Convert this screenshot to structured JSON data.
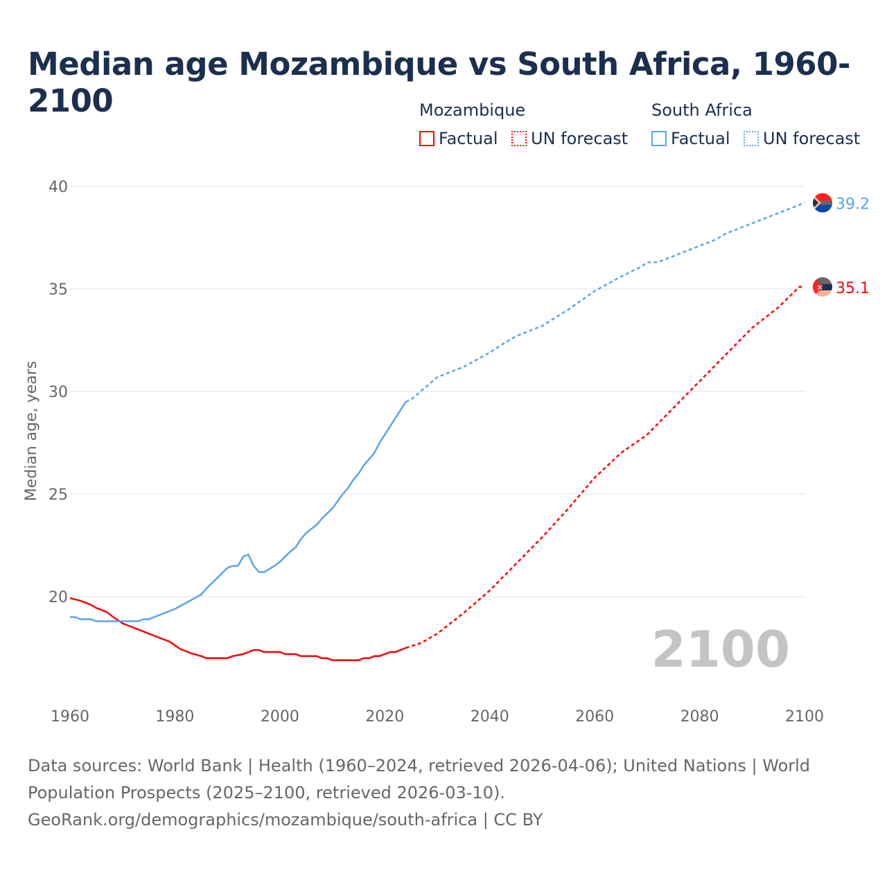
{
  "chart_data": {
    "type": "line",
    "title": "Median age Mozambique vs South Africa, 1960-2100",
    "xlabel": "",
    "ylabel": "Median age, years",
    "xlim": [
      1960,
      2100
    ],
    "ylim": [
      15.5,
      41
    ],
    "x_ticks": [
      "1960",
      "1980",
      "2000",
      "2020",
      "2040",
      "2060",
      "2080",
      "2100"
    ],
    "y_ticks": [
      "20",
      "25",
      "30",
      "35",
      "40"
    ],
    "grid": true,
    "watermark_year": "2100",
    "legend": {
      "groups": [
        {
          "name": "Mozambique",
          "items": [
            "Factual",
            "UN forecast"
          ]
        },
        {
          "name": "South Africa",
          "items": [
            "Factual",
            "UN forecast"
          ]
        }
      ],
      "placement": "top-right"
    },
    "series": [
      {
        "name": "Mozambique",
        "color": "#ff0000",
        "end_label": "35.1",
        "factual_until": 2024,
        "points": [
          [
            1960,
            19.93
          ],
          [
            1962,
            19.8
          ],
          [
            1964,
            19.6
          ],
          [
            1965,
            19.45
          ],
          [
            1967,
            19.25
          ],
          [
            1968,
            19.05
          ],
          [
            1970,
            18.7
          ],
          [
            1975,
            18.2
          ],
          [
            1979,
            17.8
          ],
          [
            1981,
            17.45
          ],
          [
            1983,
            17.25
          ],
          [
            1985,
            17.1
          ],
          [
            1986,
            17.0
          ],
          [
            1990,
            17.0
          ],
          [
            1991,
            17.1
          ],
          [
            1993,
            17.2
          ],
          [
            1995,
            17.4
          ],
          [
            1996,
            17.4
          ],
          [
            1997,
            17.3
          ],
          [
            2000,
            17.3
          ],
          [
            2001,
            17.2
          ],
          [
            2003,
            17.2
          ],
          [
            2004,
            17.1
          ],
          [
            2007,
            17.1
          ],
          [
            2008,
            17.0
          ],
          [
            2009,
            17.0
          ],
          [
            2010,
            16.9
          ],
          [
            2015,
            16.9
          ],
          [
            2016,
            17.0
          ],
          [
            2017,
            17.0
          ],
          [
            2018,
            17.1
          ],
          [
            2019,
            17.1
          ],
          [
            2021,
            17.3
          ],
          [
            2022,
            17.3
          ],
          [
            2024,
            17.5
          ],
          [
            2027,
            17.75
          ],
          [
            2030,
            18.2
          ],
          [
            2035,
            19.2
          ],
          [
            2040,
            20.3
          ],
          [
            2045,
            21.6
          ],
          [
            2050,
            22.9
          ],
          [
            2055,
            24.3
          ],
          [
            2060,
            25.8
          ],
          [
            2065,
            27.0
          ],
          [
            2070,
            27.9
          ],
          [
            2075,
            29.2
          ],
          [
            2080,
            30.5
          ],
          [
            2085,
            31.8
          ],
          [
            2090,
            33.1
          ],
          [
            2095,
            34.1
          ],
          [
            2099,
            35.1
          ],
          [
            2100,
            35.1
          ]
        ]
      },
      {
        "name": "South Africa",
        "color": "#5ba3ea",
        "end_label": "39.2",
        "factual_until": 2024,
        "points": [
          [
            1960,
            19.0
          ],
          [
            1961,
            19.0
          ],
          [
            1962,
            18.9
          ],
          [
            1964,
            18.9
          ],
          [
            1965,
            18.8
          ],
          [
            1973,
            18.8
          ],
          [
            1974,
            18.9
          ],
          [
            1975,
            18.9
          ],
          [
            1980,
            19.4
          ],
          [
            1985,
            20.1
          ],
          [
            1986,
            20.4
          ],
          [
            1990,
            21.4
          ],
          [
            1991,
            21.5
          ],
          [
            1992,
            21.5
          ],
          [
            1993,
            21.95
          ],
          [
            1994,
            22.05
          ],
          [
            1995,
            21.5
          ],
          [
            1996,
            21.2
          ],
          [
            1997,
            21.2
          ],
          [
            1999,
            21.5
          ],
          [
            2000,
            21.7
          ],
          [
            2002,
            22.2
          ],
          [
            2003,
            22.4
          ],
          [
            2004,
            22.8
          ],
          [
            2005,
            23.1
          ],
          [
            2007,
            23.5
          ],
          [
            2008,
            23.8
          ],
          [
            2010,
            24.3
          ],
          [
            2012,
            25.0
          ],
          [
            2013,
            25.3
          ],
          [
            2014,
            25.7
          ],
          [
            2015,
            26.0
          ],
          [
            2016,
            26.4
          ],
          [
            2018,
            27.0
          ],
          [
            2019,
            27.5
          ],
          [
            2021,
            28.3
          ],
          [
            2024,
            29.5
          ],
          [
            2025,
            29.6
          ],
          [
            2030,
            30.7
          ],
          [
            2035,
            31.2
          ],
          [
            2040,
            31.9
          ],
          [
            2043,
            32.4
          ],
          [
            2045,
            32.7
          ],
          [
            2050,
            33.2
          ],
          [
            2055,
            34.0
          ],
          [
            2060,
            34.9
          ],
          [
            2065,
            35.6
          ],
          [
            2069,
            36.1
          ],
          [
            2070,
            36.3
          ],
          [
            2072,
            36.3
          ],
          [
            2080,
            37.1
          ],
          [
            2083,
            37.4
          ],
          [
            2085,
            37.7
          ],
          [
            2090,
            38.2
          ],
          [
            2095,
            38.7
          ],
          [
            2100,
            39.2
          ]
        ]
      }
    ]
  },
  "legend_labels": {
    "moz": "Mozambique",
    "moz_factual": "Factual",
    "moz_forecast": "UN forecast",
    "za": "South Africa",
    "za_factual": "Factual",
    "za_forecast": "UN forecast"
  },
  "footer": {
    "line1": "Data sources: World Bank | Health (1960–2024, retrieved 2026-04-06); United Nations | World",
    "line2": "Population Prospects (2025–2100, retrieved 2026-03-10).",
    "line3": "GeoRank.org/demographics/mozambique/south-africa | CC BY"
  }
}
